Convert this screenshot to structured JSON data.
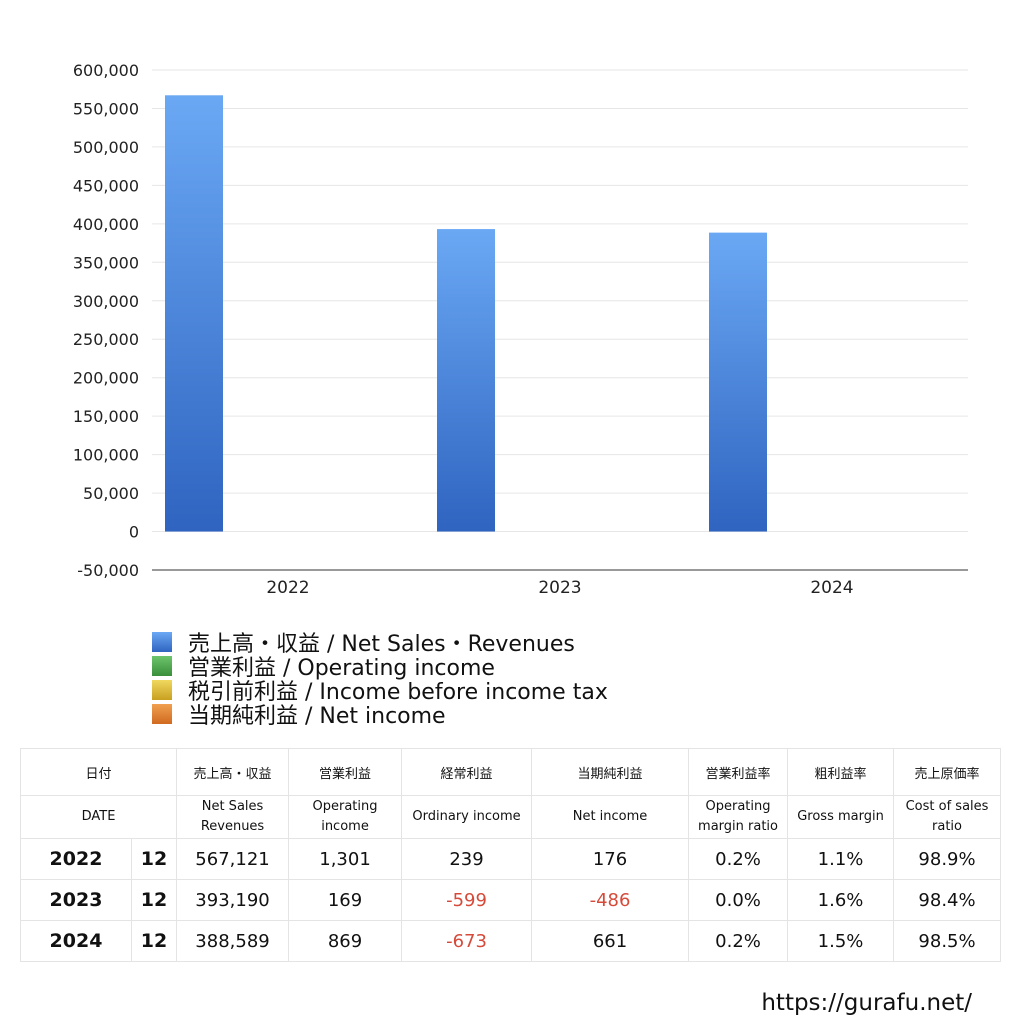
{
  "chart_data": {
    "type": "bar",
    "categories": [
      "2022",
      "2023",
      "2024"
    ],
    "series": [
      {
        "name": "売上高・収益 / Net Sales・Revenues",
        "values": [
          567121,
          393190,
          388589
        ],
        "color": "#4a88e0"
      },
      {
        "name": "営業利益 / Operating income",
        "values": [
          1301,
          169,
          869
        ],
        "color": "#4caf50"
      },
      {
        "name": "税引前利益 / Income before income tax",
        "values": [
          null,
          null,
          null
        ],
        "color": "#e0c030"
      },
      {
        "name": "当期純利益 / Net income",
        "values": [
          176,
          -486,
          661
        ],
        "color": "#e08030"
      }
    ],
    "ylim": [
      -50000,
      600000
    ],
    "yticks": [
      600000,
      550000,
      500000,
      450000,
      400000,
      350000,
      300000,
      250000,
      200000,
      150000,
      100000,
      50000,
      0,
      -50000
    ],
    "ytick_labels": [
      "600,000",
      "550,000",
      "500,000",
      "450,000",
      "400,000",
      "350,000",
      "300,000",
      "250,000",
      "200,000",
      "150,000",
      "100,000",
      "50,000",
      "0",
      "-50,000"
    ],
    "grid": true,
    "legend_position": "bottom-left"
  },
  "legend": [
    {
      "label": "売上高・収益 / Net Sales・Revenues",
      "color": "#4a88e0"
    },
    {
      "label": "営業利益 / Operating income",
      "color": "#4caf50"
    },
    {
      "label": "税引前利益 / Income before income tax",
      "color": "#e0c030"
    },
    {
      "label": "当期純利益 / Net income",
      "color": "#e08030"
    }
  ],
  "table": {
    "header_jp": [
      "日付",
      "売上高・収益",
      "営業利益",
      "経常利益",
      "当期純利益",
      "営業利益率",
      "粗利益率",
      "売上原価率"
    ],
    "header_en": [
      "DATE",
      "Net Sales Revenues",
      "Operating income",
      "Ordinary income",
      "Net income",
      "Operating margin ratio",
      "Gross margin",
      "Cost of sales ratio"
    ],
    "rows": [
      {
        "year": "2022",
        "month": "12",
        "sales": "567,121",
        "operating": "1,301",
        "ordinary": "239",
        "net": "176",
        "op_margin": "0.2%",
        "gross": "1.1%",
        "cost": "98.9%"
      },
      {
        "year": "2023",
        "month": "12",
        "sales": "393,190",
        "operating": "169",
        "ordinary": "-599",
        "net": "-486",
        "op_margin": "0.0%",
        "gross": "1.6%",
        "cost": "98.4%"
      },
      {
        "year": "2024",
        "month": "12",
        "sales": "388,589",
        "operating": "869",
        "ordinary": "-673",
        "net": "661",
        "op_margin": "0.2%",
        "gross": "1.5%",
        "cost": "98.5%"
      }
    ],
    "negative_color": "#d64a3a"
  },
  "url": "https://gurafu.net/"
}
